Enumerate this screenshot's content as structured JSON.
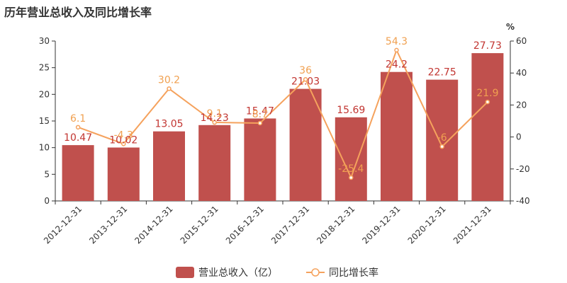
{
  "title": "历年营业总收入及同比增长率",
  "colors": {
    "bar": "#c0504d",
    "line": "#f5a25d",
    "bar_label": "#c23531",
    "line_label": "#f0a050"
  },
  "chart_data": {
    "type": "bar",
    "categories": [
      "2012-12-31",
      "2013-12-31",
      "2014-12-31",
      "2015-12-31",
      "2016-12-31",
      "2017-12-31",
      "2018-12-31",
      "2019-12-31",
      "2020-12-31",
      "2021-12-31"
    ],
    "series": [
      {
        "name": "营业总收入（亿）",
        "type": "bar",
        "axis": "left",
        "values": [
          10.47,
          10.02,
          13.05,
          14.23,
          15.47,
          21.03,
          15.69,
          24.2,
          22.75,
          27.73
        ]
      },
      {
        "name": "同比增长率",
        "type": "line",
        "axis": "right",
        "values": [
          6.1,
          -4.3,
          30.2,
          9.1,
          8.7,
          36,
          -25.4,
          54.3,
          -6,
          21.9
        ]
      }
    ],
    "y_left": {
      "min": 0,
      "max": 30,
      "ticks": [
        0,
        5,
        10,
        15,
        20,
        25,
        30
      ]
    },
    "y_right": {
      "label": "%",
      "min": -40,
      "max": 60,
      "ticks": [
        -40,
        -20,
        0,
        20,
        40,
        60
      ]
    },
    "legend": {
      "position": "bottom-center"
    },
    "grid": false
  }
}
